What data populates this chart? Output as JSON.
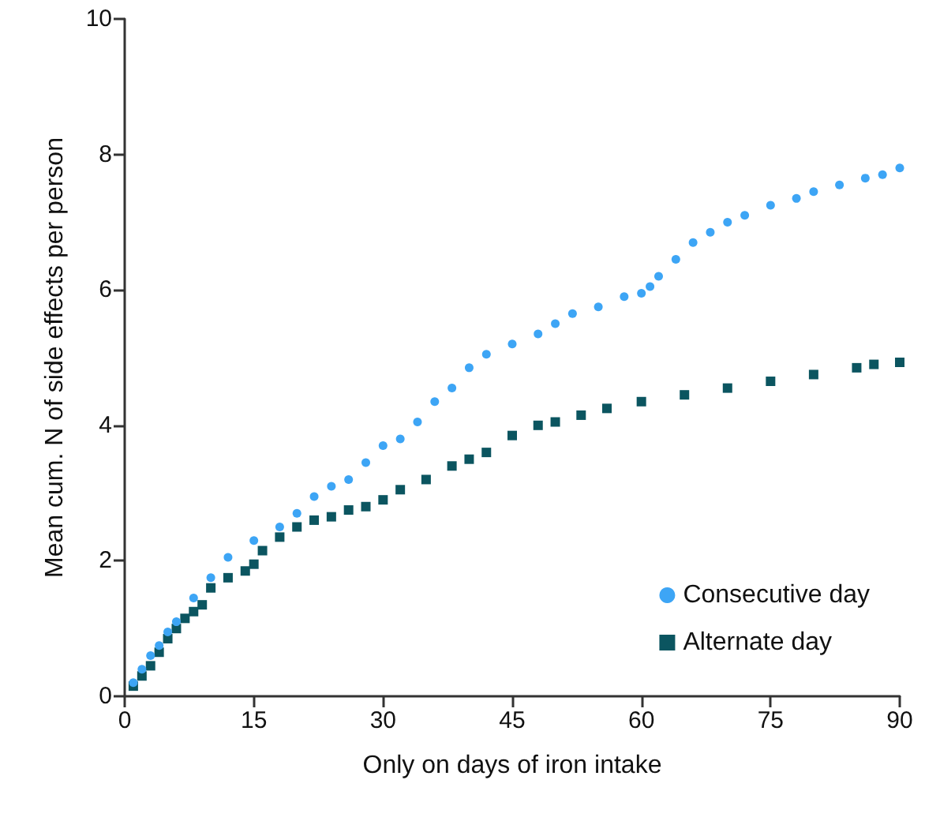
{
  "chart_data": {
    "type": "scatter",
    "xlabel": "Only on days of iron intake",
    "ylabel": "Mean cum. N of side effects per person",
    "xlim": [
      0,
      90
    ],
    "xticks": [
      0,
      15,
      30,
      45,
      60,
      75,
      90
    ],
    "ylim": [
      0,
      10
    ],
    "yticks": [
      0,
      2,
      4,
      6,
      8,
      10
    ],
    "grid": false,
    "legend": "bottom right",
    "series": [
      {
        "name": "Consecutive day",
        "color": "#3da5f5",
        "marker": "circle",
        "x": [
          1,
          2,
          3,
          4,
          5,
          6,
          8,
          10,
          12,
          15,
          18,
          20,
          22,
          24,
          26,
          28,
          30,
          32,
          34,
          36,
          38,
          40,
          42,
          45,
          48,
          50,
          52,
          55,
          58,
          60,
          61,
          62,
          64,
          66,
          68,
          70,
          72,
          75,
          78,
          80,
          83,
          86,
          88,
          90
        ],
        "values": [
          0.2,
          0.4,
          0.6,
          0.75,
          0.95,
          1.1,
          1.45,
          1.75,
          2.05,
          2.3,
          2.5,
          2.7,
          2.95,
          3.1,
          3.2,
          3.45,
          3.7,
          3.8,
          4.05,
          4.35,
          4.55,
          4.85,
          5.05,
          5.2,
          5.35,
          5.5,
          5.65,
          5.75,
          5.9,
          5.95,
          6.05,
          6.2,
          6.45,
          6.7,
          6.85,
          7.0,
          7.1,
          7.25,
          7.35,
          7.45,
          7.55,
          7.65,
          7.7,
          7.8
        ]
      },
      {
        "name": "Alternate day",
        "color": "#0b5560",
        "marker": "square",
        "x": [
          1,
          2,
          3,
          4,
          5,
          6,
          7,
          8,
          9,
          10,
          12,
          14,
          15,
          16,
          18,
          20,
          22,
          24,
          26,
          28,
          30,
          32,
          35,
          38,
          40,
          42,
          45,
          48,
          50,
          53,
          56,
          60,
          65,
          70,
          75,
          80,
          85,
          87,
          90
        ],
        "values": [
          0.15,
          0.3,
          0.45,
          0.65,
          0.85,
          1.0,
          1.15,
          1.25,
          1.35,
          1.6,
          1.75,
          1.85,
          1.95,
          2.15,
          2.35,
          2.5,
          2.6,
          2.65,
          2.75,
          2.8,
          2.9,
          3.05,
          3.2,
          3.4,
          3.5,
          3.6,
          3.85,
          4.0,
          4.05,
          4.15,
          4.25,
          4.35,
          4.45,
          4.55,
          4.65,
          4.75,
          4.85,
          4.9,
          4.93
        ]
      }
    ]
  }
}
